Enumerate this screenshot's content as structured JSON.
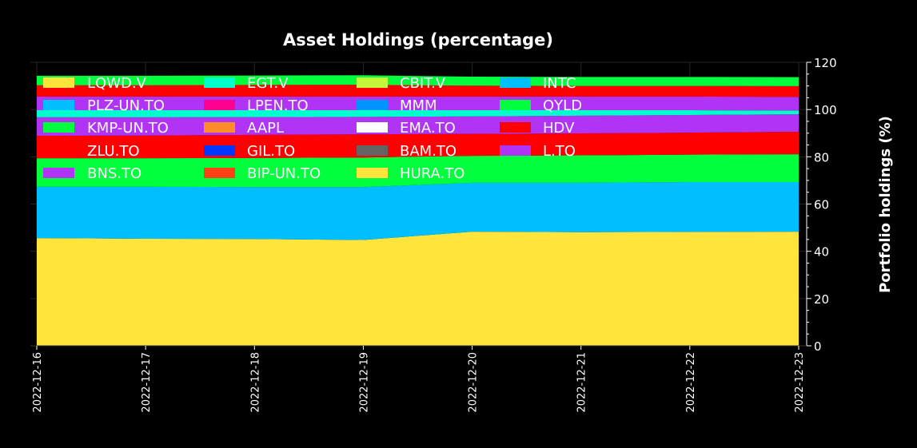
{
  "chart_data": {
    "type": "area",
    "stacked": true,
    "title": "Asset Holdings (percentage)",
    "xlabel": "",
    "ylabel": "Portfolio holdings (%)",
    "y_axis_side": "right",
    "ylim": [
      0,
      120
    ],
    "yticks": [
      0,
      20,
      40,
      60,
      80,
      100,
      120
    ],
    "grid": true,
    "legend_placement": "top-left",
    "background": "#000000",
    "x": [
      "2022-12-16",
      "2022-12-17",
      "2022-12-18",
      "2022-12-19",
      "2022-12-20",
      "2022-12-21",
      "2022-12-22",
      "2022-12-23"
    ],
    "series": [
      {
        "name": "LQWD.V",
        "color": "#ffe53b",
        "values": [
          45.6,
          45.3,
          45.2,
          44.8,
          48.3,
          48.1,
          48.2,
          48.3
        ]
      },
      {
        "name": "PLZ-UN.TO",
        "color": "#00bfff",
        "values": [
          21.7,
          22.0,
          22.0,
          22.4,
          20.7,
          20.9,
          21.1,
          21.0
        ]
      },
      {
        "name": "KMP-UN.TO",
        "color": "#00ff3c",
        "values": [
          12.1,
          12.1,
          12.3,
          12.5,
          11.4,
          11.6,
          11.6,
          11.8
        ]
      },
      {
        "name": "ZLU.TO",
        "color": "#ff0000",
        "values": [
          9.5,
          9.6,
          9.8,
          9.8,
          9.3,
          9.3,
          9.3,
          9.5
        ]
      },
      {
        "name": "BNS.TO",
        "color": "#b133f5",
        "values": [
          7.8,
          7.7,
          7.5,
          7.4,
          7.4,
          7.5,
          7.5,
          7.4
        ]
      },
      {
        "name": "EGT.V",
        "color": "#00ffcc",
        "values": [
          3.0,
          3.0,
          2.9,
          2.8,
          2.6,
          2.3,
          2.0,
          1.6
        ]
      },
      {
        "name": "LPEN.TO",
        "color": "#ff0090",
        "values": [
          0,
          0,
          0,
          0,
          0,
          0,
          0,
          0
        ]
      },
      {
        "name": "AAPL",
        "color": "#ff8c28",
        "values": [
          0,
          0,
          0,
          0,
          0,
          0,
          0,
          0
        ]
      },
      {
        "name": "GIL.TO",
        "color": "#0038ff",
        "values": [
          0,
          0,
          0,
          0,
          0,
          0,
          0,
          0
        ]
      },
      {
        "name": "BIP-UN.TO",
        "color": "#ff4015",
        "values": [
          0,
          0,
          0,
          0,
          0,
          0,
          0,
          0
        ]
      },
      {
        "name": "CBIT.V",
        "color": "#c5f73a",
        "values": [
          0,
          0,
          0,
          0,
          0,
          0,
          0,
          0
        ]
      },
      {
        "name": "MMM",
        "color": "#0094ff",
        "values": [
          0,
          0,
          0,
          0,
          0,
          0,
          0,
          0
        ]
      },
      {
        "name": "EMA.TO",
        "color": "#ffffff",
        "values": [
          0,
          0,
          0,
          0,
          0,
          0,
          0,
          0
        ]
      },
      {
        "name": "BAM.TO",
        "color": "#646464",
        "values": [
          0,
          0,
          0,
          0,
          0,
          0,
          0,
          0
        ]
      },
      {
        "name": "HURA.TO",
        "color": "#ffe53b",
        "values": [
          0,
          0,
          0,
          0,
          0,
          0,
          0,
          0
        ]
      },
      {
        "name": "INTC",
        "color": "#00bfff",
        "values": [
          0,
          0,
          0,
          0,
          0,
          0,
          0,
          0
        ]
      },
      {
        "name": "L.TO",
        "color": "#b133f5",
        "values": [
          5.8,
          5.8,
          5.8,
          5.8,
          5.8,
          5.8,
          5.8,
          5.8
        ]
      },
      {
        "name": "HDV",
        "color": "#ff0000",
        "values": [
          4.8,
          4.8,
          4.9,
          5.0,
          4.6,
          4.5,
          4.5,
          4.5
        ]
      },
      {
        "name": "QYLD",
        "color": "#00ff3c",
        "values": [
          4.0,
          4.0,
          4.0,
          4.0,
          3.8,
          3.8,
          3.8,
          3.8
        ]
      }
    ],
    "legend_order": [
      "LQWD.V",
      "PLZ-UN.TO",
      "KMP-UN.TO",
      "ZLU.TO",
      "BNS.TO",
      "EGT.V",
      "LPEN.TO",
      "AAPL",
      "GIL.TO",
      "BIP-UN.TO",
      "CBIT.V",
      "MMM",
      "EMA.TO",
      "BAM.TO",
      "HURA.TO",
      "INTC",
      "QYLD",
      "HDV",
      "L.TO"
    ]
  }
}
